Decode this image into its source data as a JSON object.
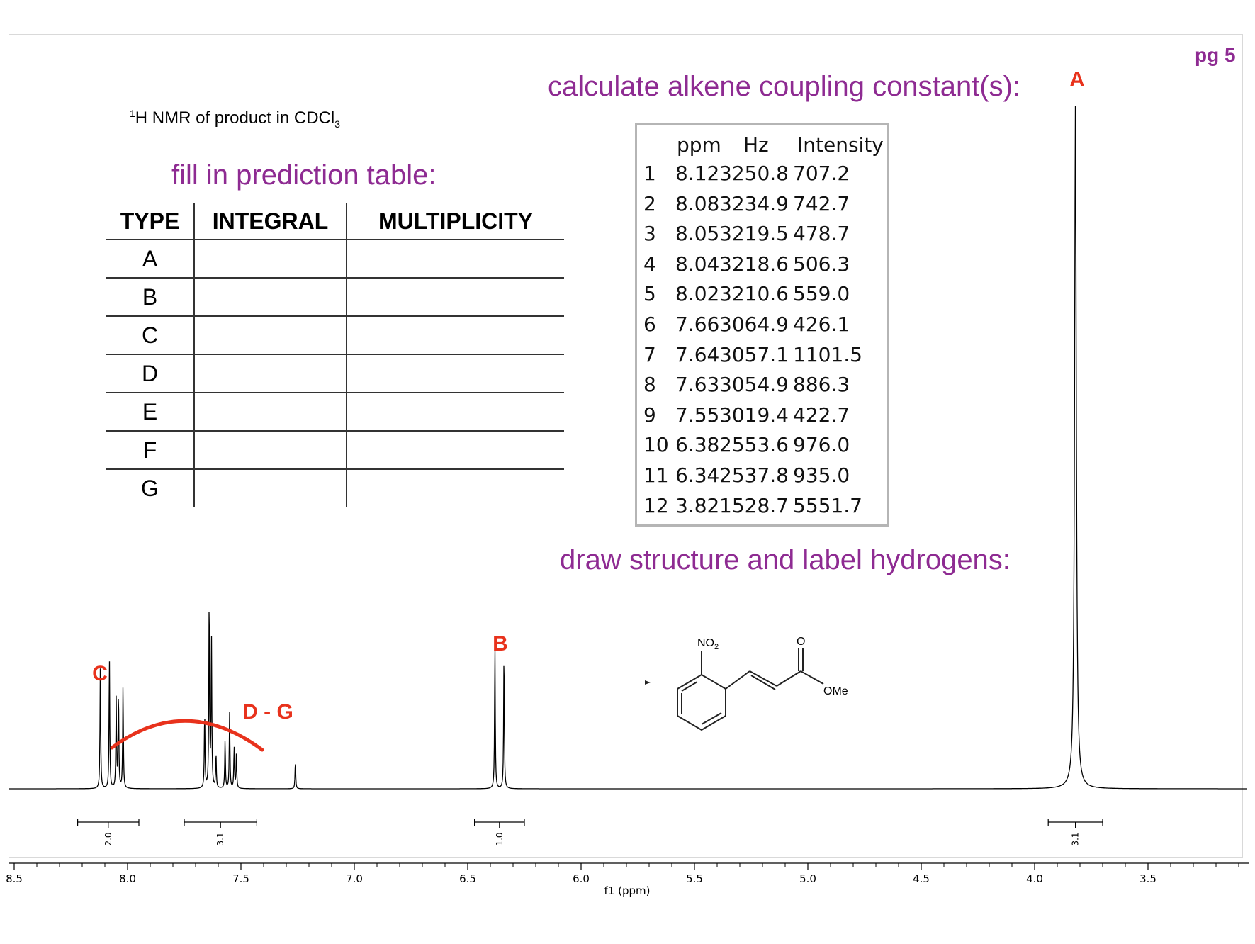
{
  "page_number": "pg 5",
  "titles": {
    "coupling": "calculate alkene coupling constant(s):",
    "fill": "fill in prediction table:",
    "draw": "draw structure and label hydrogens:",
    "nmr_prefix": "1",
    "nmr_main": "H NMR of product in CDCl",
    "nmr_sub": "3"
  },
  "prediction_table": {
    "headers": [
      "TYPE",
      "INTEGRAL",
      "MULTIPLICITY"
    ],
    "rows": [
      "A",
      "B",
      "C",
      "D",
      "E",
      "F",
      "G"
    ]
  },
  "peak_table": {
    "headers": [
      "ppm",
      "Hz",
      "Intensity"
    ],
    "rows": [
      {
        "n": "1",
        "ppm": "8.12",
        "hz": "3250.8",
        "intensity": "707.2"
      },
      {
        "n": "2",
        "ppm": "8.08",
        "hz": "3234.9",
        "intensity": "742.7"
      },
      {
        "n": "3",
        "ppm": "8.05",
        "hz": "3219.5",
        "intensity": "478.7"
      },
      {
        "n": "4",
        "ppm": "8.04",
        "hz": "3218.6",
        "intensity": "506.3"
      },
      {
        "n": "5",
        "ppm": "8.02",
        "hz": "3210.6",
        "intensity": "559.0"
      },
      {
        "n": "6",
        "ppm": "7.66",
        "hz": "3064.9",
        "intensity": "426.1"
      },
      {
        "n": "7",
        "ppm": "7.64",
        "hz": "3057.1",
        "intensity": "1101.5"
      },
      {
        "n": "8",
        "ppm": "7.63",
        "hz": "3054.9",
        "intensity": "886.3"
      },
      {
        "n": "9",
        "ppm": "7.55",
        "hz": "3019.4",
        "intensity": "422.7"
      },
      {
        "n": "10",
        "ppm": "6.38",
        "hz": "2553.6",
        "intensity": "976.0"
      },
      {
        "n": "11",
        "ppm": "6.34",
        "hz": "2537.8",
        "intensity": "935.0"
      },
      {
        "n": "12",
        "ppm": "3.82",
        "hz": "1528.7",
        "intensity": "5551.7"
      }
    ]
  },
  "structure": {
    "group_no2": "NO",
    "group_no2_sub": "2",
    "group_o": "O",
    "group_ome": "OMe"
  },
  "chart_data": {
    "type": "line",
    "xlabel": "f1 (ppm)",
    "xlim": [
      8.5,
      3.0
    ],
    "x_reversed": true,
    "ticks": [
      "8.5",
      "8.0",
      "7.5",
      "7.0",
      "6.5",
      "6.0",
      "5.5",
      "5.0",
      "4.5",
      "4.0",
      "3.5"
    ],
    "tick_values": [
      8.5,
      8.0,
      7.5,
      7.0,
      6.5,
      6.0,
      5.5,
      5.0,
      4.5,
      4.0,
      3.5
    ],
    "peaks": [
      {
        "ppm": 8.12,
        "height": 0.18
      },
      {
        "ppm": 8.08,
        "height": 0.19
      },
      {
        "ppm": 8.05,
        "height": 0.13
      },
      {
        "ppm": 8.04,
        "height": 0.14
      },
      {
        "ppm": 8.02,
        "height": 0.15
      },
      {
        "ppm": 7.66,
        "height": 0.11
      },
      {
        "ppm": 7.64,
        "height": 0.28
      },
      {
        "ppm": 7.63,
        "height": 0.22
      },
      {
        "ppm": 7.61,
        "height": 0.05
      },
      {
        "ppm": 7.57,
        "height": 0.07
      },
      {
        "ppm": 7.55,
        "height": 0.11
      },
      {
        "ppm": 7.53,
        "height": 0.06
      },
      {
        "ppm": 7.52,
        "height": 0.05
      },
      {
        "ppm": 7.26,
        "height": 0.04
      },
      {
        "ppm": 6.38,
        "height": 0.21
      },
      {
        "ppm": 6.34,
        "height": 0.2
      },
      {
        "ppm": 3.82,
        "height": 1.0
      }
    ],
    "peak_labels": [
      {
        "text": "A",
        "ppm": 3.82
      },
      {
        "text": "B",
        "ppm": 6.36
      },
      {
        "text": "C",
        "ppm": 8.13
      },
      {
        "text": "D - G",
        "ppm": 7.38
      }
    ],
    "integrals": [
      {
        "from": 8.22,
        "to": 7.95,
        "value": "2.0"
      },
      {
        "from": 7.75,
        "to": 7.43,
        "value": "3.1"
      },
      {
        "from": 6.47,
        "to": 6.25,
        "value": "1.0"
      },
      {
        "from": 3.94,
        "to": 3.7,
        "value": "3.1"
      }
    ]
  },
  "colors": {
    "purple": "#8e2b92",
    "red": "#e8321c",
    "line": "#000000"
  }
}
